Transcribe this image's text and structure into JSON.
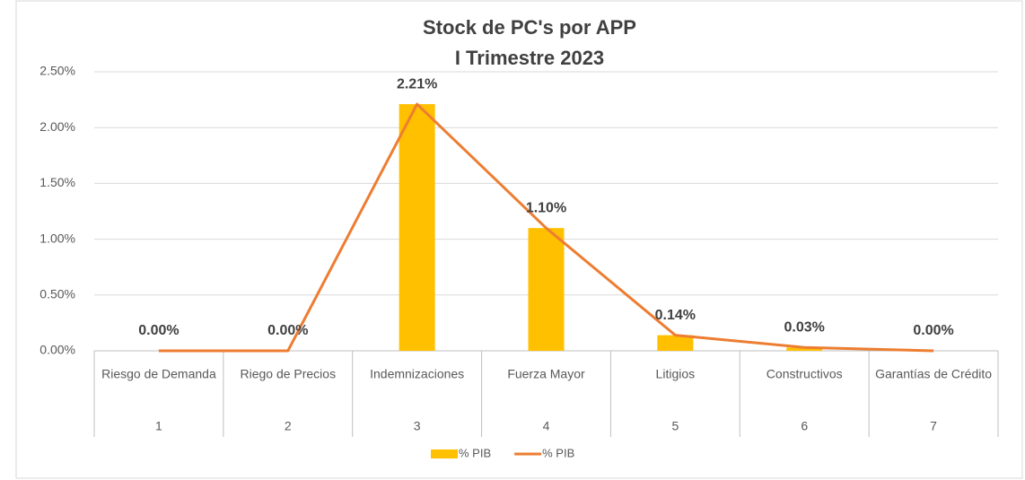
{
  "chart_data": {
    "type": "bar",
    "title": [
      "Stock de PC's por APP",
      "I Trimestre 2023"
    ],
    "categories": [
      "Riesgo de Demanda",
      "Riego de Precios",
      "Indemnizaciones",
      "Fuerza Mayor",
      "Litigios",
      "Constructivos",
      "Garantías de Crédito"
    ],
    "category_numbers": [
      "1",
      "2",
      "3",
      "4",
      "5",
      "6",
      "7"
    ],
    "series": [
      {
        "name": "% PIB",
        "type": "bar",
        "color": "#ffc000",
        "values": [
          0,
          0,
          2.21,
          1.1,
          0.14,
          0.03,
          0
        ],
        "value_labels": [
          "0.00%",
          "0.00%",
          "2.21%",
          "1.10%",
          "0.14%",
          "0.03%",
          "0.00%"
        ]
      },
      {
        "name": "% PIB",
        "type": "line",
        "color": "#ed7d31",
        "values": [
          0,
          0,
          2.21,
          1.1,
          0.14,
          0.03,
          0
        ]
      }
    ],
    "ylim": [
      0,
      2.5
    ],
    "yticks": [
      {
        "value": 0,
        "label": "0.00%"
      },
      {
        "value": 0.5,
        "label": "0.50%"
      },
      {
        "value": 1,
        "label": "1.00%"
      },
      {
        "value": 1.5,
        "label": "1.50%"
      },
      {
        "value": 2,
        "label": "2.00%"
      },
      {
        "value": 2.5,
        "label": "2.50%"
      }
    ],
    "grid": true,
    "legend": "bottom"
  }
}
